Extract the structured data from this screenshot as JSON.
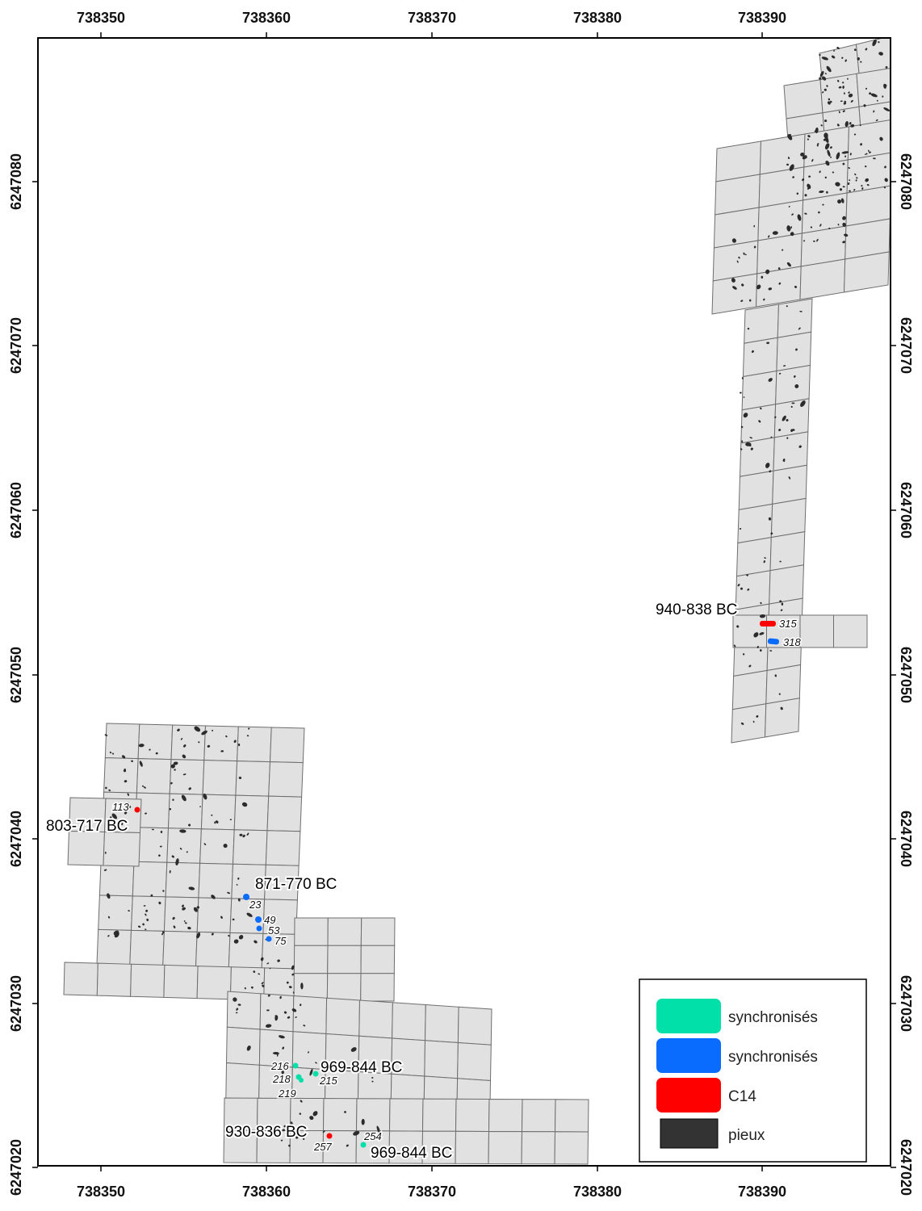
{
  "axes": {
    "x_ticks": [
      "738350",
      "738360",
      "738370",
      "738380",
      "738390"
    ],
    "y_ticks": [
      "6247080",
      "6247070",
      "6247060",
      "6247050",
      "6247040",
      "6247030",
      "6247020"
    ]
  },
  "date_labels": [
    "940-838 BC",
    "803-717 BC",
    "871-770 BC",
    "969-844 BC",
    "930-836 BC",
    "969-844 BC"
  ],
  "sample_labels": [
    "315",
    "318",
    "113",
    "23",
    "49",
    "53",
    "75",
    "216",
    "218",
    "215",
    "219",
    "254",
    "257"
  ],
  "legend": {
    "items": [
      {
        "label": "synchronisés",
        "color": "#00e0a8"
      },
      {
        "label": "synchronisés",
        "color": "#0a6cff"
      },
      {
        "label": "C14",
        "color": "#ff0000"
      },
      {
        "label": "pieux",
        "color": "#333333"
      }
    ]
  },
  "colors": {
    "grid_fill": "#e1e1e1",
    "grid_stroke": "#6e6e6e",
    "pile": "#2b2b2b",
    "sync_green": "#00e0a8",
    "sync_blue": "#0a6cff",
    "c14_red": "#ff0000"
  }
}
